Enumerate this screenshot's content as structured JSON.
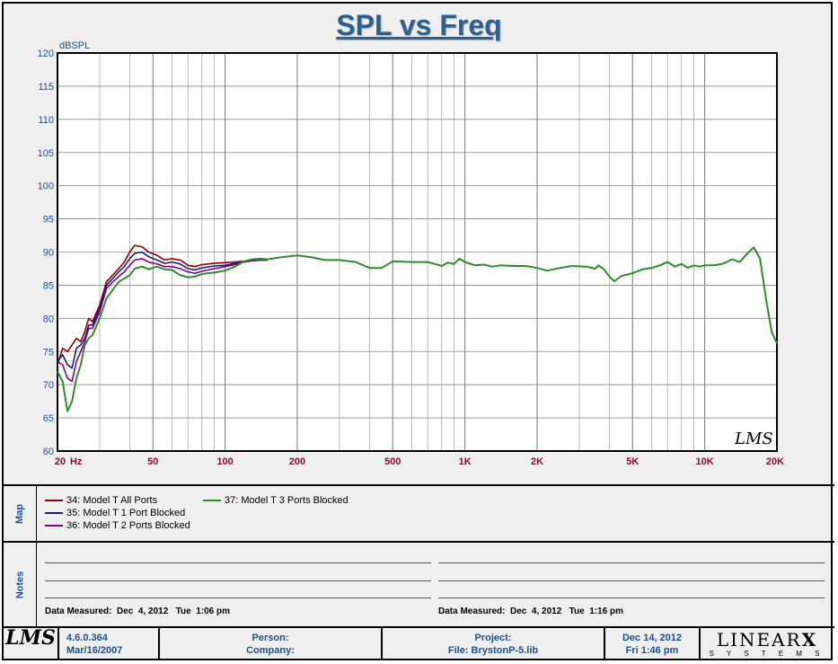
{
  "title": "SPL vs Freq",
  "chart_data": {
    "type": "line",
    "title": "SPL vs Freq",
    "ylabel": "dBSPL",
    "xlabel": "Hz",
    "x_scale": "log",
    "xlim": [
      20,
      20000
    ],
    "ylim": [
      60,
      120
    ],
    "grid": true,
    "x_tick_labels": [
      {
        "x": 20,
        "label": "20"
      },
      {
        "x": 50,
        "label": "50"
      },
      {
        "x": 100,
        "label": "100"
      },
      {
        "x": 200,
        "label": "200"
      },
      {
        "x": 500,
        "label": "500"
      },
      {
        "x": 1000,
        "label": "1K"
      },
      {
        "x": 2000,
        "label": "2K"
      },
      {
        "x": 5000,
        "label": "5K"
      },
      {
        "x": 10000,
        "label": "10K"
      },
      {
        "x": 20000,
        "label": "20K"
      }
    ],
    "y_ticks": [
      60,
      65,
      70,
      75,
      80,
      85,
      90,
      95,
      100,
      105,
      110,
      115,
      120
    ],
    "series": [
      {
        "name": "34: Model T All Ports",
        "color": "#8b0000",
        "points": [
          [
            20,
            73
          ],
          [
            21,
            75.5
          ],
          [
            22,
            75
          ],
          [
            23,
            76
          ],
          [
            24,
            77
          ],
          [
            25,
            76.5
          ],
          [
            26,
            78
          ],
          [
            27,
            80
          ],
          [
            28,
            79.5
          ],
          [
            30,
            82
          ],
          [
            32,
            85.5
          ],
          [
            34,
            86.5
          ],
          [
            36,
            87.5
          ],
          [
            38,
            88.5
          ],
          [
            40,
            90
          ],
          [
            42,
            91
          ],
          [
            45,
            90.8
          ],
          [
            48,
            90
          ],
          [
            52,
            89.5
          ],
          [
            56,
            88.8
          ],
          [
            60,
            89
          ],
          [
            65,
            88.8
          ],
          [
            70,
            88
          ],
          [
            75,
            87.8
          ],
          [
            80,
            88.1
          ],
          [
            90,
            88.3
          ],
          [
            100,
            88.4
          ],
          [
            110,
            88.5
          ],
          [
            120,
            88.6
          ],
          [
            130,
            88.7
          ],
          [
            140,
            88.8
          ],
          [
            150,
            88.8
          ]
        ]
      },
      {
        "name": "35: Model T 1 Port Blocked",
        "color": "#1a1a7a",
        "points": [
          [
            20,
            73.5
          ],
          [
            21,
            74.5
          ],
          [
            22,
            73
          ],
          [
            23,
            72.5
          ],
          [
            24,
            75.5
          ],
          [
            25,
            76
          ],
          [
            26,
            77
          ],
          [
            27,
            79
          ],
          [
            28,
            79
          ],
          [
            30,
            81.5
          ],
          [
            32,
            85
          ],
          [
            34,
            86
          ],
          [
            36,
            87
          ],
          [
            38,
            87.8
          ],
          [
            40,
            89
          ],
          [
            42,
            89.8
          ],
          [
            45,
            90
          ],
          [
            48,
            89.3
          ],
          [
            52,
            88.8
          ],
          [
            56,
            88.3
          ],
          [
            60,
            88.5
          ],
          [
            65,
            88.2
          ],
          [
            70,
            87.5
          ],
          [
            75,
            87.3
          ],
          [
            80,
            87.6
          ],
          [
            90,
            87.9
          ],
          [
            100,
            88
          ],
          [
            110,
            88.3
          ],
          [
            120,
            88.5
          ],
          [
            130,
            88.7
          ],
          [
            140,
            88.8
          ],
          [
            150,
            88.8
          ]
        ]
      },
      {
        "name": "36: Model T 2 Ports Blocked",
        "color": "#800080",
        "points": [
          [
            20,
            73.5
          ],
          [
            21,
            73
          ],
          [
            22,
            71
          ],
          [
            23,
            70.5
          ],
          [
            24,
            73.5
          ],
          [
            25,
            75
          ],
          [
            26,
            76.5
          ],
          [
            27,
            78.5
          ],
          [
            28,
            78.5
          ],
          [
            30,
            81
          ],
          [
            32,
            84.5
          ],
          [
            34,
            85.5
          ],
          [
            36,
            86.3
          ],
          [
            38,
            87
          ],
          [
            40,
            88
          ],
          [
            42,
            88.8
          ],
          [
            45,
            89
          ],
          [
            48,
            88.5
          ],
          [
            52,
            88.2
          ],
          [
            56,
            87.8
          ],
          [
            60,
            87.8
          ],
          [
            65,
            87.5
          ],
          [
            70,
            87
          ],
          [
            75,
            86.8
          ],
          [
            80,
            87.1
          ],
          [
            90,
            87.5
          ],
          [
            100,
            87.8
          ],
          [
            110,
            88.1
          ],
          [
            120,
            88.5
          ],
          [
            130,
            88.7
          ],
          [
            140,
            88.8
          ],
          [
            150,
            88.8
          ]
        ]
      },
      {
        "name": "37: Model T 3 Ports Blocked",
        "color": "#2e8b2e",
        "points": [
          [
            20,
            72
          ],
          [
            21,
            70.5
          ],
          [
            22,
            66
          ],
          [
            23,
            67.5
          ],
          [
            24,
            71
          ],
          [
            25,
            73
          ],
          [
            26,
            76
          ],
          [
            27,
            77
          ],
          [
            28,
            77.5
          ],
          [
            30,
            80
          ],
          [
            32,
            83
          ],
          [
            34,
            84.3
          ],
          [
            36,
            85.5
          ],
          [
            38,
            86
          ],
          [
            40,
            86.5
          ],
          [
            42,
            87.5
          ],
          [
            45,
            87.8
          ],
          [
            48,
            87.4
          ],
          [
            52,
            87.8
          ],
          [
            56,
            87.4
          ],
          [
            60,
            87.3
          ],
          [
            65,
            86.5
          ],
          [
            70,
            86.2
          ],
          [
            75,
            86.3
          ],
          [
            80,
            86.7
          ],
          [
            90,
            86.9
          ],
          [
            100,
            87.2
          ],
          [
            110,
            87.8
          ],
          [
            120,
            88.6
          ],
          [
            130,
            88.9
          ],
          [
            140,
            89
          ],
          [
            150,
            88.9
          ],
          [
            170,
            89.2
          ],
          [
            200,
            89.5
          ],
          [
            230,
            89.2
          ],
          [
            260,
            88.8
          ],
          [
            300,
            88.8
          ],
          [
            350,
            88.5
          ],
          [
            400,
            87.6
          ],
          [
            450,
            87.6
          ],
          [
            500,
            88.6
          ],
          [
            600,
            88.5
          ],
          [
            700,
            88.5
          ],
          [
            750,
            88.2
          ],
          [
            800,
            87.9
          ],
          [
            850,
            88.4
          ],
          [
            900,
            88.2
          ],
          [
            950,
            89
          ],
          [
            1000,
            88.5
          ],
          [
            1100,
            88
          ],
          [
            1200,
            88.1
          ],
          [
            1300,
            87.8
          ],
          [
            1400,
            88
          ],
          [
            1600,
            87.9
          ],
          [
            1800,
            87.9
          ],
          [
            2000,
            87.6
          ],
          [
            2200,
            87.2
          ],
          [
            2500,
            87.6
          ],
          [
            2800,
            87.9
          ],
          [
            3200,
            87.8
          ],
          [
            3500,
            87.5
          ],
          [
            3600,
            88
          ],
          [
            3800,
            87.4
          ],
          [
            4000,
            86.3
          ],
          [
            4200,
            85.6
          ],
          [
            4500,
            86.4
          ],
          [
            5000,
            86.8
          ],
          [
            5500,
            87.4
          ],
          [
            6000,
            87.6
          ],
          [
            6500,
            88
          ],
          [
            7000,
            88.5
          ],
          [
            7500,
            87.8
          ],
          [
            8000,
            88.2
          ],
          [
            8500,
            87.6
          ],
          [
            9000,
            88
          ],
          [
            9500,
            87.8
          ],
          [
            10000,
            88
          ],
          [
            11000,
            88
          ],
          [
            12000,
            88.3
          ],
          [
            13000,
            88.9
          ],
          [
            14000,
            88.5
          ],
          [
            15000,
            89.7
          ],
          [
            16000,
            90.7
          ],
          [
            17000,
            89
          ],
          [
            18000,
            83
          ],
          [
            19000,
            78
          ],
          [
            20000,
            76.2
          ]
        ]
      }
    ]
  },
  "map_panel": {
    "label": "Map"
  },
  "notes_panel": {
    "label": "Notes"
  },
  "measured": {
    "left": "Data Measured:  Dec  4, 2012   Tue  1:06 pm",
    "right": "Data Measured:  Dec  4, 2012   Tue  1:16 pm"
  },
  "footer": {
    "version": "4.6.0.364",
    "version_date": "Mar/16/2007",
    "person": "Person:",
    "company": "Company:",
    "project": "Project:",
    "file": "File: BrystonP-5.lib",
    "date": "Dec 14, 2012",
    "time": "Fri  1:46 pm",
    "brand_top": "LINEAR",
    "brand_x": "X",
    "brand_bottom": "S Y S T E M S",
    "logo": "LMS"
  }
}
